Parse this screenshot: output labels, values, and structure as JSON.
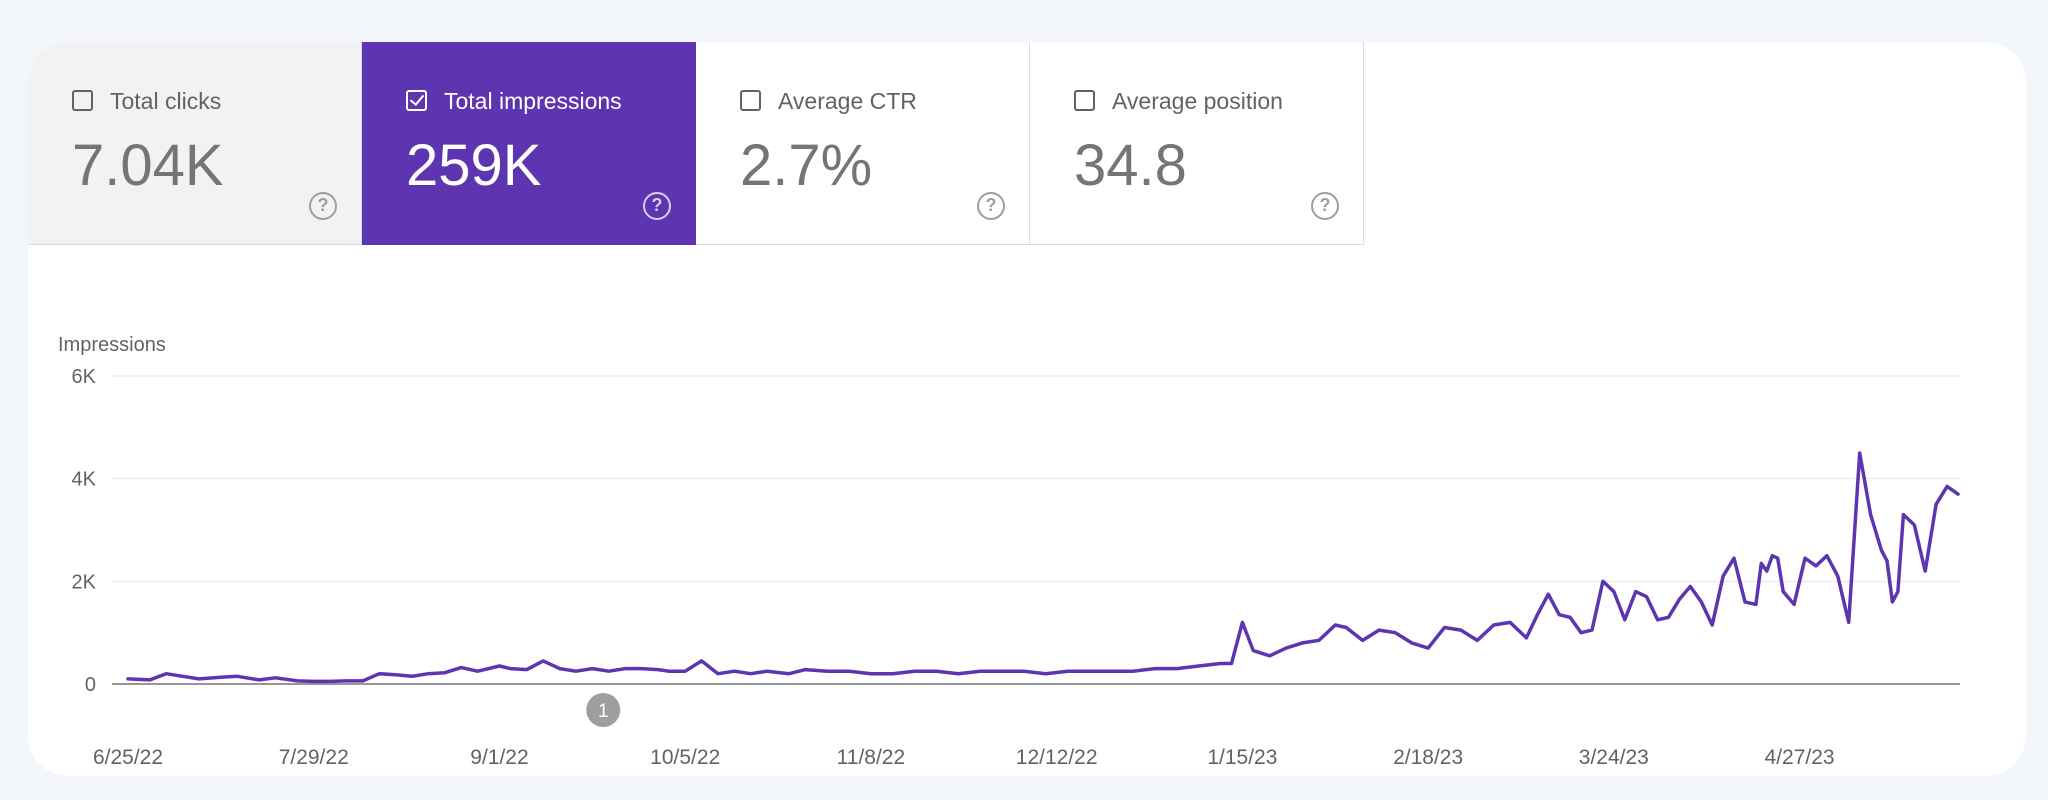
{
  "metrics": [
    {
      "label": "Total clicks",
      "value": "7.04K",
      "checked": false
    },
    {
      "label": "Total impressions",
      "value": "259K",
      "checked": true
    },
    {
      "label": "Average CTR",
      "value": "2.7%",
      "checked": false
    },
    {
      "label": "Average position",
      "value": "34.8",
      "checked": false
    }
  ],
  "help_icon": "help-circle-icon",
  "help_glyph": "?",
  "colors": {
    "accent": "#5e35b1",
    "line": "#5e35b1",
    "annotation": "#9e9e9e"
  },
  "chart_data": {
    "type": "line",
    "ylabel": "Impressions",
    "ylim": [
      0,
      6000
    ],
    "y_ticks": [
      {
        "value": 0,
        "label": "0"
      },
      {
        "value": 2000,
        "label": "2K"
      },
      {
        "value": 4000,
        "label": "4K"
      },
      {
        "value": 6000,
        "label": "6K"
      }
    ],
    "grid": true,
    "x_range": [
      "2022-06-25",
      "2023-05-26"
    ],
    "x_ticks": [
      {
        "date": "2022-06-25",
        "label": "6/25/22"
      },
      {
        "date": "2022-07-29",
        "label": "7/29/22"
      },
      {
        "date": "2022-09-01",
        "label": "9/1/22"
      },
      {
        "date": "2022-10-05",
        "label": "10/5/22"
      },
      {
        "date": "2022-11-08",
        "label": "11/8/22"
      },
      {
        "date": "2022-12-12",
        "label": "12/12/22"
      },
      {
        "date": "2023-01-15",
        "label": "1/15/23"
      },
      {
        "date": "2023-02-18",
        "label": "2/18/23"
      },
      {
        "date": "2023-03-24",
        "label": "3/24/23"
      },
      {
        "date": "2023-04-27",
        "label": "4/27/23"
      }
    ],
    "annotations": [
      {
        "date": "2022-09-20",
        "label": "1"
      }
    ],
    "series": [
      {
        "x": [
          "2022-06-25",
          "2022-06-29",
          "2022-07-02",
          "2022-07-05",
          "2022-07-08",
          "2022-07-12",
          "2022-07-15",
          "2022-07-19",
          "2022-07-22",
          "2022-07-26",
          "2022-07-29",
          "2022-08-01",
          "2022-08-04",
          "2022-08-07",
          "2022-08-10",
          "2022-08-13",
          "2022-08-16",
          "2022-08-19",
          "2022-08-22",
          "2022-08-25",
          "2022-08-28",
          "2022-09-01",
          "2022-09-03",
          "2022-09-06",
          "2022-09-09",
          "2022-09-12",
          "2022-09-15",
          "2022-09-18",
          "2022-09-21",
          "2022-09-24",
          "2022-09-27",
          "2022-09-30",
          "2022-10-02",
          "2022-10-05",
          "2022-10-08",
          "2022-10-11",
          "2022-10-14",
          "2022-10-17",
          "2022-10-20",
          "2022-10-24",
          "2022-10-27",
          "2022-10-31",
          "2022-11-04",
          "2022-11-08",
          "2022-11-12",
          "2022-11-16",
          "2022-11-20",
          "2022-11-24",
          "2022-11-28",
          "2022-12-02",
          "2022-12-06",
          "2022-12-10",
          "2022-12-14",
          "2022-12-18",
          "2022-12-22",
          "2022-12-26",
          "2022-12-30",
          "2023-01-03",
          "2023-01-07",
          "2023-01-11",
          "2023-01-13",
          "2023-01-15",
          "2023-01-17",
          "2023-01-20",
          "2023-01-23",
          "2023-01-26",
          "2023-01-29",
          "2023-02-01",
          "2023-02-03",
          "2023-02-06",
          "2023-02-09",
          "2023-02-12",
          "2023-02-15",
          "2023-02-18",
          "2023-02-21",
          "2023-02-24",
          "2023-02-27",
          "2023-03-02",
          "2023-03-05",
          "2023-03-08",
          "2023-03-10",
          "2023-03-12",
          "2023-03-14",
          "2023-03-16",
          "2023-03-18",
          "2023-03-20",
          "2023-03-22",
          "2023-03-24",
          "2023-03-26",
          "2023-03-28",
          "2023-03-30",
          "2023-04-01",
          "2023-04-03",
          "2023-04-05",
          "2023-04-07",
          "2023-04-09",
          "2023-04-11",
          "2023-04-13",
          "2023-04-15",
          "2023-04-17",
          "2023-04-19",
          "2023-04-20",
          "2023-04-21",
          "2023-04-22",
          "2023-04-23",
          "2023-04-24",
          "2023-04-26",
          "2023-04-28",
          "2023-04-30",
          "2023-05-02",
          "2023-05-04",
          "2023-05-06",
          "2023-05-08",
          "2023-05-10",
          "2023-05-12",
          "2023-05-13",
          "2023-05-14",
          "2023-05-15",
          "2023-05-16",
          "2023-05-18",
          "2023-05-20",
          "2023-05-22",
          "2023-05-24",
          "2023-05-26"
        ],
        "y": [
          100,
          80,
          200,
          150,
          100,
          130,
          150,
          80,
          120,
          60,
          50,
          50,
          60,
          60,
          200,
          180,
          150,
          200,
          220,
          320,
          250,
          350,
          300,
          280,
          450,
          300,
          250,
          300,
          250,
          300,
          300,
          280,
          250,
          250,
          450,
          200,
          250,
          200,
          250,
          200,
          280,
          250,
          250,
          200,
          200,
          250,
          250,
          200,
          250,
          250,
          250,
          200,
          250,
          250,
          250,
          250,
          300,
          300,
          350,
          400,
          400,
          1200,
          650,
          550,
          700,
          800,
          850,
          1150,
          1100,
          850,
          1050,
          1000,
          800,
          700,
          1100,
          1050,
          850,
          1150,
          1200,
          900,
          1350,
          1750,
          1350,
          1300,
          1000,
          1050,
          2000,
          1800,
          1250,
          1800,
          1700,
          1250,
          1300,
          1650,
          1900,
          1600,
          1150,
          2100,
          2450,
          1600,
          1550,
          2350,
          2200,
          2500,
          2450,
          1800,
          1550,
          2450,
          2300,
          2500,
          2100,
          1200,
          4500,
          3300,
          2600,
          2400,
          1600,
          1800,
          3300,
          3100,
          2200,
          3500,
          3850,
          3700
        ]
      }
    ]
  }
}
